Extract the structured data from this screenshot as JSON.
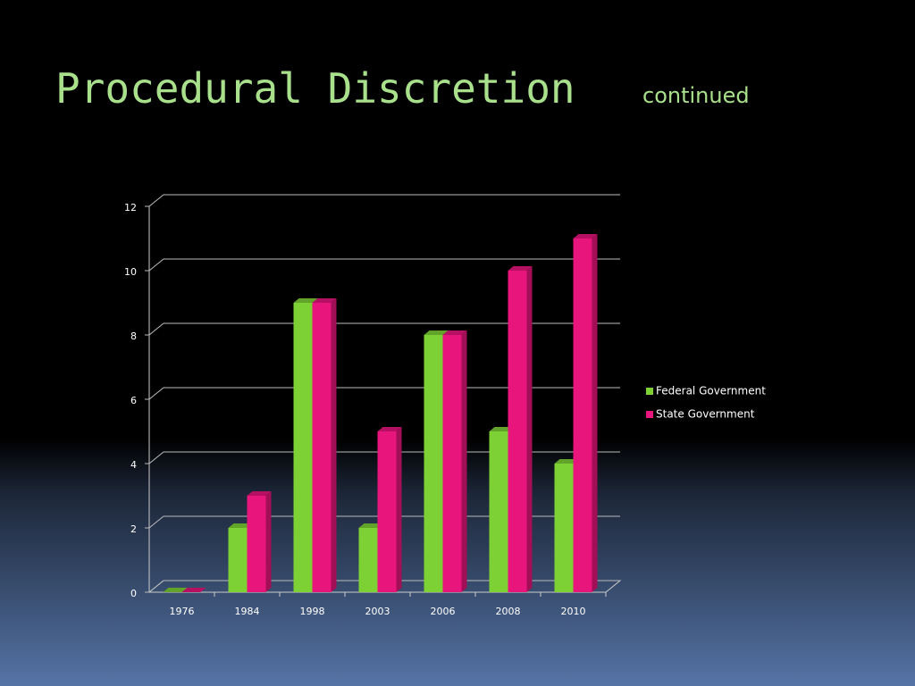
{
  "chart_data": {
    "type": "bar",
    "title": "Procedural Discretion",
    "subtitle": "continued",
    "categories": [
      "1976",
      "1984",
      "1998",
      "2003",
      "2006",
      "2008",
      "2010"
    ],
    "series": [
      {
        "name": "Federal Government",
        "color": "#7dd135",
        "values": [
          0,
          2,
          9,
          2,
          8,
          5,
          4
        ]
      },
      {
        "name": "State Government",
        "color": "#e8157c",
        "values": [
          0,
          3,
          9,
          5,
          8,
          10,
          11
        ]
      }
    ],
    "ylim": [
      0,
      12
    ],
    "yticks": [
      0,
      2,
      4,
      6,
      8,
      10,
      12
    ],
    "grid": true
  }
}
